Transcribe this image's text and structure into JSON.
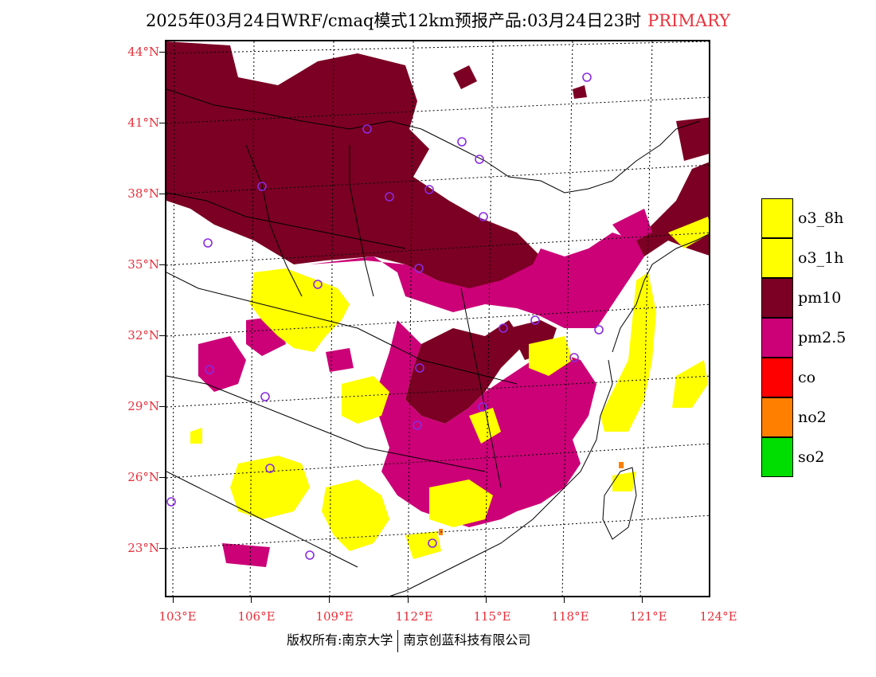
{
  "header": {
    "title": "2025年03月24日WRF/cmaq模式12km预报产品:03月24日23时",
    "primary_label": "PRIMARY",
    "primary_color": "#e8303a"
  },
  "axes": {
    "lat_labels": [
      "44°N",
      "41°N",
      "38°N",
      "35°N",
      "32°N",
      "29°N",
      "26°N",
      "23°N"
    ],
    "lon_labels": [
      "103°E",
      "106°E",
      "109°E",
      "112°E",
      "115°E",
      "118°E",
      "121°E",
      "124°E"
    ],
    "label_color": "#e8303a"
  },
  "legend": [
    {
      "label": "o3_8h",
      "color": "#ffff00"
    },
    {
      "label": "o3_1h",
      "color": "#ffff00"
    },
    {
      "label": "pm10",
      "color": "#7b0023"
    },
    {
      "label": "pm2.5",
      "color": "#cc0077"
    },
    {
      "label": "co",
      "color": "#ff0000"
    },
    {
      "label": "no2",
      "color": "#ff7f00"
    },
    {
      "label": "so2",
      "color": "#00dd00"
    }
  ],
  "footer": {
    "left": "版权所有:南京大学",
    "right": "南京创蓝科技有限公司"
  }
}
